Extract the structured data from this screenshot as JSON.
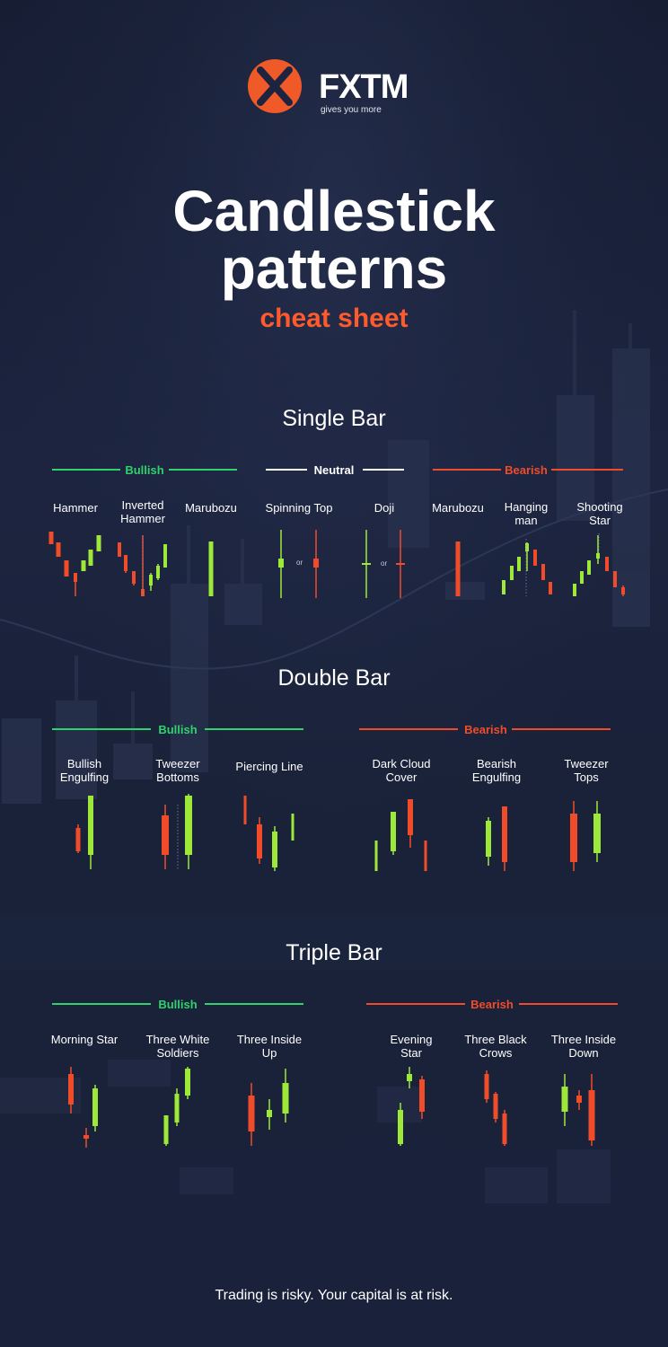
{
  "brand": {
    "name": "FXTM",
    "tagline": "gives you more"
  },
  "title_line1": "Candlestick",
  "title_line2": "patterns",
  "subtitle": "cheat sheet",
  "colors": {
    "bullish": "#9ee83a",
    "bearish": "#f04c2a",
    "bullish_label": "#2fd26b",
    "accent": "#ff5a2c",
    "background": "#1a2239"
  },
  "sections": {
    "single": {
      "title": "Single Bar",
      "groups": {
        "bullish": "Bullish",
        "neutral": "Neutral",
        "bearish": "Bearish"
      },
      "patterns": [
        "Hammer",
        "Inverted Hammer",
        "Marubozu",
        "Spinning Top",
        "Doji",
        "Marubozu",
        "Hanging man",
        "Shooting Star"
      ],
      "or": "or"
    },
    "double": {
      "title": "Double Bar",
      "groups": {
        "bullish": "Bullish",
        "bearish": "Bearish"
      },
      "patterns": [
        "Bullish Engulfing",
        "Tweezer Bottoms",
        "Piercing Line",
        "Dark Cloud Cover",
        "Bearish Engulfing",
        "Tweezer Tops"
      ]
    },
    "triple": {
      "title": "Triple Bar",
      "groups": {
        "bullish": "Bullish",
        "bearish": "Bearish"
      },
      "patterns": [
        "Morning Star",
        "Three White Soldiers",
        "Three Inside Up",
        "Evening Star",
        "Three Black Crows",
        "Three Inside Down"
      ]
    }
  },
  "disclaimer": "Trading is risky. Your capital is at risk."
}
